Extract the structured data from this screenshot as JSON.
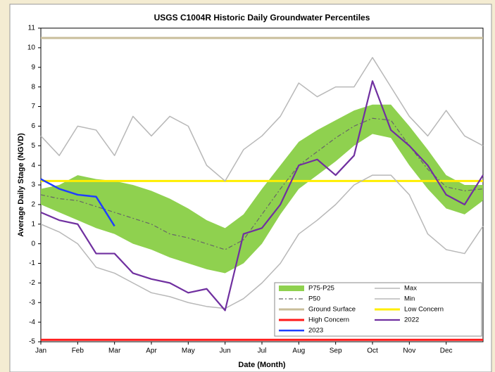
{
  "chart_data": {
    "type": "line",
    "title": "USGS C1004R Historic Daily Groundwater Percentiles",
    "x_label": "Date (Month)",
    "y_label": "Average Daily Stage (NGVD)",
    "x": [
      0,
      0.5,
      1,
      1.5,
      2,
      2.5,
      3,
      3.5,
      4,
      4.5,
      5,
      5.5,
      6,
      6.5,
      7,
      7.5,
      8,
      8.5,
      9,
      9.5,
      10,
      10.5,
      11,
      11.5,
      12
    ],
    "xlim": [
      0,
      12
    ],
    "xticks": [
      {
        "value": 0,
        "label": "Jan"
      },
      {
        "value": 1,
        "label": "Feb"
      },
      {
        "value": 2,
        "label": "Mar"
      },
      {
        "value": 3,
        "label": "Apr"
      },
      {
        "value": 4,
        "label": "May"
      },
      {
        "value": 5,
        "label": "Jun"
      },
      {
        "value": 6,
        "label": "Jul"
      },
      {
        "value": 7,
        "label": "Aug"
      },
      {
        "value": 8,
        "label": "Sep"
      },
      {
        "value": 9,
        "label": "Oct"
      },
      {
        "value": 10,
        "label": "Nov"
      },
      {
        "value": 11,
        "label": "Dec"
      }
    ],
    "ylim": [
      -5,
      11
    ],
    "yticks": [
      -5,
      -4,
      -3,
      -2,
      -1,
      0,
      1,
      2,
      3,
      4,
      5,
      6,
      7,
      8,
      9,
      10,
      11
    ],
    "band": {
      "name": "P75-P25",
      "color": "#8fd14f",
      "upper": [
        2.8,
        3.0,
        3.5,
        3.3,
        3.2,
        3.0,
        2.7,
        2.3,
        1.8,
        1.2,
        0.8,
        1.5,
        2.8,
        4.0,
        5.2,
        5.8,
        6.3,
        6.8,
        7.1,
        7.1,
        6.0,
        4.8,
        3.5,
        3.0,
        3.0
      ],
      "lower": [
        2.0,
        1.6,
        1.2,
        0.8,
        0.5,
        0.0,
        -0.3,
        -0.7,
        -1.0,
        -1.3,
        -1.5,
        -1.0,
        0.0,
        1.5,
        2.8,
        3.5,
        4.2,
        5.0,
        5.6,
        5.4,
        4.0,
        2.8,
        1.8,
        1.5,
        2.2
      ]
    },
    "series": [
      {
        "name": "Max",
        "color": "#b8b8b8",
        "width": 1.5,
        "values": [
          5.5,
          4.5,
          6.0,
          5.8,
          4.5,
          6.5,
          5.5,
          6.5,
          6.0,
          4.0,
          3.2,
          4.8,
          5.5,
          6.5,
          8.2,
          7.5,
          8.0,
          8.0,
          9.5,
          8.0,
          6.5,
          5.5,
          6.8,
          5.5,
          5.0
        ]
      },
      {
        "name": "P50",
        "color": "#666666",
        "width": 1.2,
        "dash": true,
        "values": [
          2.5,
          2.3,
          2.2,
          1.9,
          1.6,
          1.3,
          1.0,
          0.5,
          0.3,
          0,
          -0.3,
          0.2,
          1.5,
          2.8,
          4.0,
          4.7,
          5.4,
          6.0,
          6.4,
          6.3,
          5.0,
          3.8,
          2.9,
          2.7,
          2.8
        ]
      },
      {
        "name": "Min",
        "color": "#b8b8b8",
        "width": 1.5,
        "values": [
          1.0,
          0.6,
          0.0,
          -1.2,
          -1.5,
          -2.0,
          -2.5,
          -2.7,
          -3.0,
          -3.2,
          -3.3,
          -2.8,
          -2.0,
          -1.0,
          0.5,
          1.2,
          2.0,
          3.0,
          3.5,
          3.5,
          2.5,
          0.5,
          -0.3,
          -0.5,
          0.9
        ]
      },
      {
        "name": "2022",
        "color": "#7030a0",
        "width": 2.2,
        "values": [
          1.6,
          1.2,
          1.0,
          -0.5,
          -0.5,
          -1.5,
          -1.8,
          -2.0,
          -2.5,
          -2.3,
          -3.4,
          0.5,
          0.8,
          2.0,
          4.0,
          4.3,
          3.5,
          4.5,
          8.3,
          5.8,
          5.0,
          4.0,
          2.5,
          2.0,
          3.5
        ]
      },
      {
        "name": "2023",
        "color": "#1f3fff",
        "width": 2.5,
        "values": [
          3.3,
          2.8,
          2.5,
          2.4,
          0.9,
          null,
          null,
          null,
          null,
          null,
          null,
          null,
          null,
          null,
          null,
          null,
          null,
          null,
          null,
          null,
          null,
          null,
          null,
          null,
          null
        ]
      }
    ],
    "hlines": [
      {
        "name": "Ground Surface",
        "color": "#c8bd9a",
        "value": 10.5
      },
      {
        "name": "Low Concern",
        "color": "#ffee00",
        "value": 3.2
      },
      {
        "name": "High Concern",
        "color": "#ff1a1a",
        "value": -4.9
      }
    ],
    "legend": "lower right"
  }
}
